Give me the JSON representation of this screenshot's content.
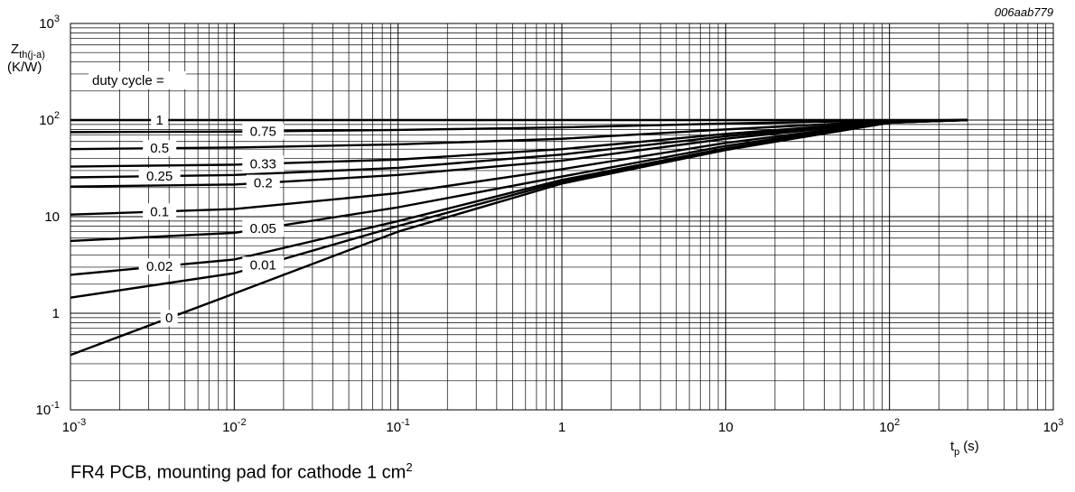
{
  "chart_data": {
    "type": "line",
    "code": "006aab779",
    "ylabel_main": "Z",
    "ylabel_sub": "th(j-a)",
    "yunit": "(K/W)",
    "xlabel_main": "t",
    "xlabel_sub": "p",
    "xunit": "(s)",
    "legend_title": "duty cycle =",
    "xscale": "log",
    "yscale": "log",
    "xlim": [
      0.001,
      1000
    ],
    "ylim": [
      0.1,
      1000
    ],
    "grid": true,
    "x_ticks": [
      {
        "base": "10",
        "exp": "-3"
      },
      {
        "base": "10",
        "exp": "-2"
      },
      {
        "base": "10",
        "exp": "-1"
      },
      {
        "base": "1",
        "exp": ""
      },
      {
        "base": "10",
        "exp": ""
      },
      {
        "base": "10",
        "exp": "2"
      },
      {
        "base": "10",
        "exp": "3"
      }
    ],
    "y_ticks": [
      {
        "base": "10",
        "exp": "-1"
      },
      {
        "base": "1",
        "exp": ""
      },
      {
        "base": "10",
        "exp": ""
      },
      {
        "base": "10",
        "exp": "2"
      },
      {
        "base": "10",
        "exp": "3"
      }
    ],
    "series": [
      {
        "name": "1",
        "label_x": 0.0035,
        "points": [
          [
            0.001,
            100
          ],
          [
            300,
            100
          ]
        ]
      },
      {
        "name": "0.75",
        "label_x": 0.015,
        "points": [
          [
            0.001,
            75
          ],
          [
            0.01,
            76
          ],
          [
            0.1,
            79
          ],
          [
            1,
            84
          ],
          [
            10,
            92
          ],
          [
            100,
            99
          ],
          [
            300,
            100
          ]
        ]
      },
      {
        "name": "0.5",
        "label_x": 0.0035,
        "points": [
          [
            0.001,
            50
          ],
          [
            0.01,
            52
          ],
          [
            0.1,
            56
          ],
          [
            1,
            64
          ],
          [
            10,
            80
          ],
          [
            100,
            98
          ],
          [
            300,
            100
          ]
        ]
      },
      {
        "name": "0.33",
        "label_x": 0.015,
        "points": [
          [
            0.001,
            33
          ],
          [
            0.01,
            34.5
          ],
          [
            0.1,
            39
          ],
          [
            1,
            50
          ],
          [
            10,
            72
          ],
          [
            100,
            97
          ],
          [
            300,
            100
          ]
        ]
      },
      {
        "name": "0.25",
        "label_x": 0.0035,
        "points": [
          [
            0.001,
            25.5
          ],
          [
            0.01,
            27
          ],
          [
            0.1,
            32
          ],
          [
            1,
            44
          ],
          [
            10,
            68
          ],
          [
            100,
            97
          ],
          [
            300,
            100
          ]
        ]
      },
      {
        "name": "0.2",
        "label_x": 0.015,
        "points": [
          [
            0.001,
            20.5
          ],
          [
            0.01,
            21.5
          ],
          [
            0.1,
            27
          ],
          [
            1,
            38
          ],
          [
            10,
            64
          ],
          [
            100,
            96
          ],
          [
            300,
            100
          ]
        ]
      },
      {
        "name": "0.1",
        "label_x": 0.0035,
        "points": [
          [
            0.001,
            10.5
          ],
          [
            0.01,
            12
          ],
          [
            0.1,
            17.5
          ],
          [
            1,
            31
          ],
          [
            10,
            58
          ],
          [
            100,
            95
          ],
          [
            300,
            100
          ]
        ]
      },
      {
        "name": "0.05",
        "label_x": 0.015,
        "points": [
          [
            0.001,
            5.6
          ],
          [
            0.01,
            6.8
          ],
          [
            0.1,
            12.5
          ],
          [
            1,
            26
          ],
          [
            10,
            54
          ],
          [
            100,
            95
          ],
          [
            300,
            100
          ]
        ]
      },
      {
        "name": "0.02",
        "label_x": 0.0035,
        "points": [
          [
            0.001,
            2.5
          ],
          [
            0.01,
            3.6
          ],
          [
            0.1,
            9
          ],
          [
            1,
            24
          ],
          [
            10,
            51
          ],
          [
            100,
            94
          ],
          [
            300,
            100
          ]
        ]
      },
      {
        "name": "0.01",
        "label_x": 0.015,
        "points": [
          [
            0.001,
            1.45
          ],
          [
            0.01,
            2.6
          ],
          [
            0.1,
            8
          ],
          [
            1,
            23
          ],
          [
            10,
            50
          ],
          [
            100,
            94
          ],
          [
            300,
            100
          ]
        ]
      },
      {
        "name": "0",
        "label_x": 0.004,
        "points": [
          [
            0.001,
            0.37
          ],
          [
            0.01,
            1.6
          ],
          [
            0.1,
            7
          ],
          [
            1,
            22
          ],
          [
            10,
            49
          ],
          [
            100,
            94
          ],
          [
            300,
            100
          ]
        ]
      }
    ]
  },
  "caption": {
    "text": "FR4 PCB, mounting pad for cathode 1 cm",
    "sup": "2"
  }
}
